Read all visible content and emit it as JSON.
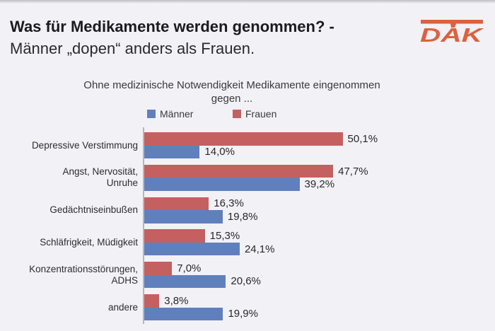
{
  "page": {
    "background": "#f2f1f6"
  },
  "header": {
    "title_line1": "Was für Medikamente werden genommen? -",
    "title_line2": "Männer „dopen“ anders als Frauen.",
    "logo": {
      "text": "DAK",
      "color": "#dc6140"
    }
  },
  "chart_data": {
    "type": "bar",
    "orientation": "horizontal",
    "title_lines": [
      "Ohne medizinische Notwendigkeit Medikamente eingenommen",
      "gegen ..."
    ],
    "legend": [
      {
        "label": "Männer",
        "color": "#6080bd"
      },
      {
        "label": "Frauen",
        "color": "#c4605f"
      }
    ],
    "legend_position": "top",
    "grid": false,
    "xlim": [
      0,
      55
    ],
    "categories": [
      "Depressive Verstimmung",
      "Angst, Nervosität, Unruhe",
      "Gedächtniseinbußen",
      "Schläfrigkeit, Müdigkeit",
      "Konzentrationsstörungen, ADHS",
      "andere"
    ],
    "category_lines": [
      [
        "Depressive Verstimmung"
      ],
      [
        "Angst, Nervosität,",
        "Unruhe"
      ],
      [
        "Gedächtniseinbußen"
      ],
      [
        "Schläfrigkeit, Müdigkeit"
      ],
      [
        "Konzentrationsstörungen,",
        "ADHS"
      ],
      [
        "andere"
      ]
    ],
    "series": [
      {
        "name": "Frauen",
        "color": "#c4605f",
        "values": [
          50.1,
          47.7,
          16.3,
          15.3,
          7.0,
          3.8
        ],
        "labels": [
          "50,1%",
          "47,7%",
          "16,3%",
          "15,3%",
          "7,0%",
          "3,8%"
        ]
      },
      {
        "name": "Männer",
        "color": "#6080bd",
        "values": [
          14.0,
          39.2,
          19.8,
          24.1,
          20.6,
          19.9
        ],
        "labels": [
          "14,0%",
          "39,2%",
          "19,8%",
          "24,1%",
          "20,6%",
          "19,9%"
        ]
      }
    ],
    "bar_order_top_to_bottom": [
      "Frauen",
      "Männer"
    ],
    "value_format": "percent-comma-one-decimal"
  }
}
